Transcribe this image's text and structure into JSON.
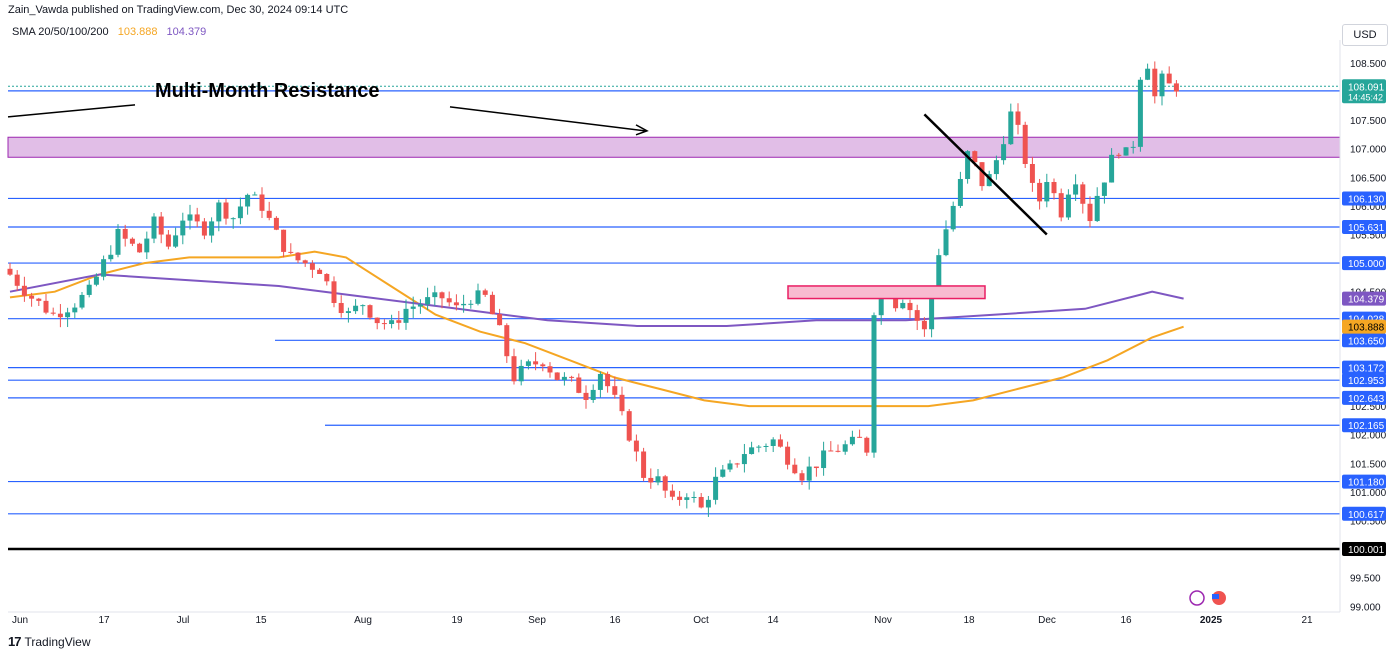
{
  "header": {
    "publisher": "Zain_Vawda published on TradingView.com, Dec 30, 2024 09:14 UTC"
  },
  "indicator": {
    "label": "SMA 20/50/100/200",
    "value_50": "103.888",
    "value_100": "104.379"
  },
  "currency_button": "USD",
  "footer": {
    "brand": "TradingView",
    "logo": "17"
  },
  "colors": {
    "up": "#26a69a",
    "down": "#ef5350",
    "sma50": "#f5a623",
    "sma100": "#7e57c2",
    "hline": "#2962ff",
    "zone_fill": "#e1bee7",
    "zone_border": "#9c27b0",
    "box_fill": "#f8bbd0",
    "box_border": "#e91e63"
  },
  "chart_data": {
    "type": "candlestick",
    "title": "",
    "ylim": [
      98.9,
      108.9
    ],
    "y_ticks": [
      "108.500",
      "107.500",
      "107.000",
      "106.500",
      "106.000",
      "105.500",
      "104.500",
      "102.500",
      "102.000",
      "101.500",
      "101.000",
      "100.500",
      "99.500",
      "99.000"
    ],
    "x_ticks": [
      "Jun",
      "17",
      "Jul",
      "15",
      "Aug",
      "19",
      "Sep",
      "16",
      "Oct",
      "14",
      "Nov",
      "18",
      "Dec",
      "16",
      "2025",
      "21"
    ],
    "price_levels": [
      {
        "value": 106.13,
        "label": "106.130"
      },
      {
        "value": 105.631,
        "label": "105.631"
      },
      {
        "value": 105.0,
        "label": "105.000"
      },
      {
        "value": 104.028,
        "label": "104.028"
      },
      {
        "value": 103.65,
        "label": "103.650"
      },
      {
        "value": 103.172,
        "label": "103.172"
      },
      {
        "value": 102.953,
        "label": "102.953"
      },
      {
        "value": 102.643,
        "label": "102.643"
      },
      {
        "value": 102.165,
        "label": "102.165"
      },
      {
        "value": 101.18,
        "label": "101.180"
      },
      {
        "value": 100.617,
        "label": "100.617"
      },
      {
        "value": 100.001,
        "label": "100.001"
      }
    ],
    "current_price": {
      "value": 108.091,
      "label": "108.091",
      "countdown": "14:45:42"
    },
    "resistance_line": {
      "value": 108.011,
      "label": "108.011"
    },
    "resistance_zone": {
      "from": 106.85,
      "to": 107.2
    },
    "annotation": "Multi-Month Resistance",
    "sma_labels": [
      {
        "name": "SMA 50",
        "value": 103.888,
        "label": "103.888"
      },
      {
        "name": "SMA 100",
        "value": 104.379,
        "label": "104.379"
      }
    ],
    "bars": 163,
    "ohlc_anchors": [
      [
        0,
        104.8
      ],
      [
        3,
        104.4
      ],
      [
        6,
        104.1
      ],
      [
        9,
        104.3
      ],
      [
        11,
        104.5
      ],
      [
        13,
        105.0
      ],
      [
        15,
        105.5
      ],
      [
        18,
        105.2
      ],
      [
        20,
        105.7
      ],
      [
        22,
        105.3
      ],
      [
        24,
        105.8
      ],
      [
        27,
        105.6
      ],
      [
        29,
        106.0
      ],
      [
        31,
        105.8
      ],
      [
        33,
        106.2
      ],
      [
        35,
        106.0
      ],
      [
        37,
        105.5
      ],
      [
        39,
        105.1
      ],
      [
        41,
        105.0
      ],
      [
        43,
        104.9
      ],
      [
        45,
        104.4
      ],
      [
        47,
        104.1
      ],
      [
        49,
        104.3
      ],
      [
        51,
        104.0
      ],
      [
        53,
        103.9
      ],
      [
        55,
        104.2
      ],
      [
        57,
        104.3
      ],
      [
        60,
        104.4
      ],
      [
        62,
        104.2
      ],
      [
        64,
        104.4
      ],
      [
        66,
        104.4
      ],
      [
        68,
        103.8
      ],
      [
        70,
        103.0
      ],
      [
        72,
        103.2
      ],
      [
        74,
        103.3
      ],
      [
        76,
        103.0
      ],
      [
        78,
        102.9
      ],
      [
        80,
        102.7
      ],
      [
        82,
        103.1
      ],
      [
        84,
        102.6
      ],
      [
        86,
        102.0
      ],
      [
        88,
        101.3
      ],
      [
        90,
        101.2
      ],
      [
        92,
        100.8
      ],
      [
        94,
        101.0
      ],
      [
        96,
        100.7
      ],
      [
        98,
        101.2
      ],
      [
        100,
        101.4
      ],
      [
        102,
        101.7
      ],
      [
        104,
        101.8
      ],
      [
        106,
        101.9
      ],
      [
        108,
        101.6
      ],
      [
        110,
        101.3
      ],
      [
        112,
        101.5
      ],
      [
        114,
        101.7
      ],
      [
        116,
        101.8
      ],
      [
        118,
        101.9
      ],
      [
        120,
        101.6
      ],
      [
        122,
        101.2
      ],
      [
        124,
        100.9
      ],
      [
        126,
        100.6
      ],
      [
        128,
        100.8
      ],
      [
        130,
        101.0
      ],
      [
        132,
        100.7
      ],
      [
        134,
        100.6
      ],
      [
        136,
        100.5
      ],
      [
        138,
        100.9
      ],
      [
        140,
        101.3
      ],
      [
        142,
        101.7
      ],
      [
        144,
        102.2
      ],
      [
        146,
        102.5
      ],
      [
        148,
        102.7
      ],
      [
        150,
        102.8
      ],
      [
        152,
        103.0
      ],
      [
        154,
        103.2
      ],
      [
        156,
        103.3
      ],
      [
        158,
        103.6
      ],
      [
        160,
        103.9
      ],
      [
        163,
        104.2
      ]
    ],
    "x_range": [
      "2024-06-01",
      "2025-01-24"
    ]
  }
}
